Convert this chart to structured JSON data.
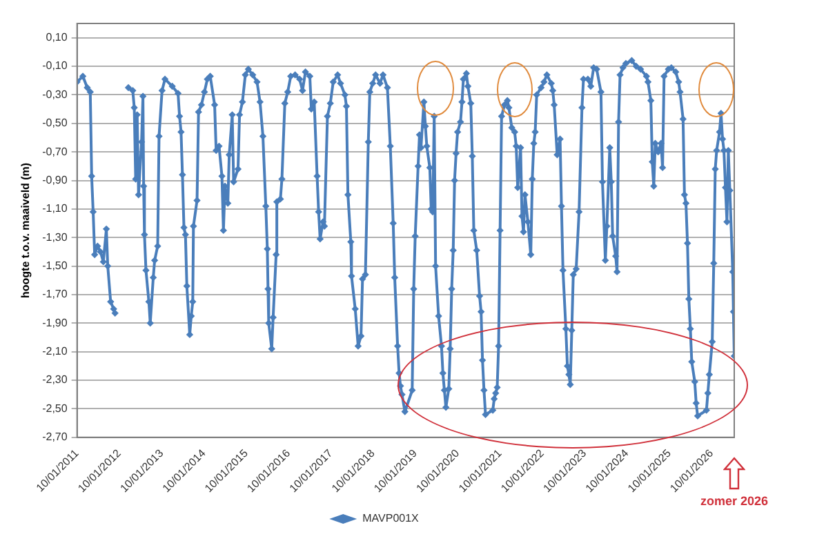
{
  "chart_data": {
    "type": "line",
    "ylabel": "hoogte t.o.v. maaiveld (m)",
    "annotations": [
      "zomer 2026"
    ],
    "xlim": [
      "2011-01-10",
      "2026-07-25"
    ],
    "xticks": [
      {
        "value": "2011-01-10",
        "label": "10/01/2011"
      },
      {
        "value": "2012-01-10",
        "label": "10/01/2012"
      },
      {
        "value": "2013-01-10",
        "label": "10/01/2013"
      },
      {
        "value": "2014-01-10",
        "label": "10/01/2014"
      },
      {
        "value": "2015-01-10",
        "label": "10/01/2015"
      },
      {
        "value": "2016-01-10",
        "label": "10/01/2016"
      },
      {
        "value": "2017-01-10",
        "label": "10/01/2017"
      },
      {
        "value": "2018-01-10",
        "label": "10/01/2018"
      },
      {
        "value": "2019-01-10",
        "label": "10/01/2019"
      },
      {
        "value": "2020-01-10",
        "label": "10/01/2020"
      },
      {
        "value": "2021-01-10",
        "label": "10/01/2021"
      },
      {
        "value": "2022-01-10",
        "label": "10/01/2022"
      },
      {
        "value": "2023-01-10",
        "label": "10/01/2023"
      },
      {
        "value": "2024-01-10",
        "label": "10/01/2024"
      },
      {
        "value": "2025-01-10",
        "label": "10/01/2025"
      },
      {
        "value": "2026-01-10",
        "label": "10/01/2026"
      }
    ],
    "ylim": [
      -2.7,
      0.2
    ],
    "yticks": [
      {
        "value": 0.1,
        "label": "0,10"
      },
      {
        "value": -0.1,
        "label": "-0,10"
      },
      {
        "value": -0.3,
        "label": "-0,30"
      },
      {
        "value": -0.5,
        "label": "-0,50"
      },
      {
        "value": -0.7,
        "label": "-0,70"
      },
      {
        "value": -0.9,
        "label": "-0,90"
      },
      {
        "value": -1.1,
        "label": "-1,10"
      },
      {
        "value": -1.3,
        "label": "-1,30"
      },
      {
        "value": -1.5,
        "label": "-1,50"
      },
      {
        "value": -1.7,
        "label": "-1,70"
      },
      {
        "value": -1.9,
        "label": "-1,90"
      },
      {
        "value": -2.1,
        "label": "-2,10"
      },
      {
        "value": -2.3,
        "label": "-2,30"
      },
      {
        "value": -2.5,
        "label": "-2,50"
      },
      {
        "value": -2.7,
        "label": "-2,70"
      }
    ],
    "grid": "y",
    "legend": "bottom",
    "marker": "diamond",
    "line_style": "solid",
    "series": [
      {
        "name": "MAVP001X",
        "color": "#4a7ebb",
        "x": [
          "2011-01-10",
          "2011-03-01",
          "2011-04-08",
          "2011-05-04",
          "2011-05-16",
          "2011-05-29",
          "2011-06-11",
          "2011-07-06",
          "2011-07-31",
          "2011-08-25",
          "2011-09-20",
          "2011-10-02",
          "2011-10-27",
          "2011-11-22",
          "2011-12-04",
          "2012-01-15",
          "2012-03-28",
          "2012-05-05",
          "2012-05-18",
          "2012-05-30",
          "2012-06-12",
          "2012-06-24",
          "2012-07-20",
          "2012-08-01",
          "2012-08-07",
          "2012-08-14",
          "2012-08-27",
          "2012-09-21",
          "2012-10-03",
          "2012-10-29",
          "2012-11-10",
          "2012-12-06",
          "2012-12-18",
          "2013-01-13",
          "2013-02-07",
          "2013-04-11",
          "2013-05-31",
          "2013-06-13",
          "2013-06-26",
          "2013-07-08",
          "2013-07-21",
          "2013-08-03",
          "2013-08-15",
          "2013-09-09",
          "2013-09-22",
          "2013-10-05",
          "2013-10-11",
          "2013-11-11",
          "2013-11-24",
          "2013-12-19",
          "2014-01-14",
          "2014-02-08",
          "2014-03-05",
          "2014-04-12",
          "2014-04-25",
          "2014-05-20",
          "2014-06-14",
          "2014-06-27",
          "2014-07-10",
          "2014-08-04",
          "2014-08-16",
          "2014-09-11",
          "2014-09-23",
          "2014-10-31",
          "2014-11-13",
          "2014-12-08",
          "2015-01-02",
          "2015-01-28",
          "2015-03-07",
          "2015-04-13",
          "2015-05-09",
          "2015-06-03",
          "2015-06-28",
          "2015-07-11",
          "2015-07-17",
          "2015-07-23",
          "2015-08-18",
          "2015-08-30",
          "2015-09-25",
          "2015-10-01",
          "2015-11-01",
          "2015-11-14",
          "2015-12-09",
          "2016-01-03",
          "2016-01-29",
          "2016-03-07",
          "2016-04-15",
          "2016-05-10",
          "2016-06-04",
          "2016-07-12",
          "2016-07-25",
          "2016-08-19",
          "2016-09-13",
          "2016-09-26",
          "2016-10-09",
          "2016-11-03",
          "2016-11-15",
          "2016-12-11",
          "2017-01-05",
          "2017-01-30",
          "2017-03-09",
          "2017-04-03",
          "2017-05-11",
          "2017-05-24",
          "2017-06-06",
          "2017-07-01",
          "2017-07-07",
          "2017-08-08",
          "2017-09-02",
          "2017-09-27",
          "2017-10-10",
          "2017-11-04",
          "2017-11-29",
          "2017-12-12",
          "2018-01-06",
          "2018-01-31",
          "2018-03-10",
          "2018-04-05",
          "2018-05-13",
          "2018-06-07",
          "2018-07-02",
          "2018-07-15",
          "2018-08-09",
          "2018-08-22",
          "2018-09-03",
          "2018-09-16",
          "2018-10-11",
          "2018-12-13",
          "2018-12-26",
          "2019-01-08",
          "2019-02-02",
          "2019-02-14",
          "2019-02-27",
          "2019-03-24",
          "2019-04-06",
          "2019-04-18",
          "2019-05-14",
          "2019-05-26",
          "2019-06-08",
          "2019-06-21",
          "2019-07-03",
          "2019-07-29",
          "2019-08-23",
          "2019-09-04",
          "2019-09-17",
          "2019-09-30",
          "2019-10-25",
          "2019-11-06",
          "2019-11-19",
          "2019-12-02",
          "2019-12-14",
          "2019-12-27",
          "2020-01-09",
          "2020-02-03",
          "2020-02-16",
          "2020-02-28",
          "2020-03-25",
          "2020-04-07",
          "2020-05-02",
          "2020-05-15",
          "2020-05-28",
          "2020-06-22",
          "2020-07-17",
          "2020-07-30",
          "2020-08-11",
          "2020-08-24",
          "2020-09-06",
          "2020-11-08",
          "2020-11-20",
          "2020-12-03",
          "2020-12-16",
          "2020-12-28",
          "2021-01-10",
          "2021-01-23",
          "2021-02-17",
          "2021-03-14",
          "2021-03-27",
          "2021-04-21",
          "2021-05-16",
          "2021-05-29",
          "2021-06-11",
          "2021-07-06",
          "2021-07-18",
          "2021-07-31",
          "2021-08-13",
          "2021-09-07",
          "2021-10-02",
          "2021-10-15",
          "2021-10-28",
          "2021-11-09",
          "2021-11-22",
          "2021-12-30",
          "2022-01-24",
          "2022-02-18",
          "2022-03-28",
          "2022-04-10",
          "2022-04-22",
          "2022-05-18",
          "2022-06-12",
          "2022-06-24",
          "2022-07-07",
          "2022-08-01",
          "2022-08-14",
          "2022-08-27",
          "2022-09-08",
          "2022-09-21",
          "2022-10-04",
          "2022-10-29",
          "2022-11-23",
          "2022-12-18",
          "2022-12-31",
          "2023-02-07",
          "2023-03-04",
          "2023-03-29",
          "2023-04-24",
          "2023-05-31",
          "2023-06-13",
          "2023-07-08",
          "2023-07-21",
          "2023-08-15",
          "2023-08-28",
          "2023-09-09",
          "2023-10-05",
          "2023-10-17",
          "2023-10-30",
          "2023-11-12",
          "2023-12-07",
          "2024-01-01",
          "2024-02-21",
          "2024-03-30",
          "2024-05-07",
          "2024-06-27",
          "2024-07-10",
          "2024-08-04",
          "2024-08-16",
          "2024-08-29",
          "2024-09-11",
          "2024-10-06",
          "2024-10-31",
          "2024-11-13",
          "2024-11-26",
          "2025-01-02",
          "2025-01-28",
          "2025-03-07",
          "2025-04-01",
          "2025-04-13",
          "2025-05-09",
          "2025-05-21",
          "2025-06-03",
          "2025-06-16",
          "2025-06-28",
          "2025-07-11",
          "2025-07-23",
          "2025-08-18",
          "2025-08-30",
          "2025-09-12",
          "2025-11-27",
          "2025-12-09",
          "2025-12-22",
          "2026-01-16",
          "2026-01-29",
          "2026-02-11",
          "2026-02-23",
          "2026-03-20",
          "2026-04-02",
          "2026-04-15",
          "2026-04-27",
          "2026-05-10",
          "2026-05-23",
          "2026-06-04",
          "2026-06-17",
          "2026-07-12",
          "2026-07-18",
          "2026-07-25"
        ],
        "values": [
          -0.21,
          -0.17,
          -0.25,
          -0.28,
          -0.87,
          -1.12,
          -1.42,
          -1.36,
          -1.4,
          -1.47,
          -1.24,
          -1.5,
          -1.75,
          -1.8,
          -1.83,
          null,
          -0.25,
          -0.27,
          -0.39,
          -0.89,
          -0.44,
          -1.0,
          -0.63,
          -0.31,
          -0.94,
          -1.28,
          -1.53,
          -1.75,
          -1.9,
          -1.58,
          -1.46,
          -1.36,
          -0.59,
          -0.27,
          -0.19,
          -0.24,
          -0.29,
          -0.45,
          -0.56,
          -0.86,
          -1.23,
          -1.28,
          -1.64,
          -1.98,
          -1.85,
          -1.75,
          -1.22,
          -1.04,
          -0.42,
          -0.37,
          -0.28,
          -0.19,
          -0.17,
          -0.37,
          -0.69,
          -0.66,
          -0.87,
          -1.25,
          -0.94,
          -1.06,
          -0.72,
          -0.44,
          -0.91,
          -0.82,
          -0.44,
          -0.35,
          -0.16,
          -0.12,
          -0.16,
          -0.21,
          -0.35,
          -0.59,
          -1.08,
          -1.38,
          -1.66,
          -1.9,
          -2.08,
          -1.86,
          -1.42,
          -1.05,
          -1.03,
          -0.89,
          -0.36,
          -0.28,
          -0.17,
          -0.16,
          -0.19,
          -0.27,
          -0.14,
          -0.17,
          -0.4,
          -0.35,
          -0.87,
          -1.12,
          -1.31,
          -1.19,
          -1.22,
          -0.45,
          -0.36,
          -0.21,
          -0.16,
          -0.22,
          -0.3,
          -0.38,
          -1.0,
          -1.33,
          -1.57,
          -1.8,
          -2.06,
          -1.99,
          -1.59,
          -1.56,
          -0.63,
          -0.28,
          -0.22,
          -0.16,
          -0.22,
          -0.16,
          -0.25,
          -0.66,
          -1.2,
          -1.58,
          -2.06,
          -2.25,
          -2.34,
          -2.4,
          -2.52,
          -2.37,
          -1.66,
          -1.29,
          -0.8,
          -0.58,
          -0.67,
          -0.35,
          -0.52,
          -0.66,
          -0.81,
          -1.1,
          -1.12,
          -0.45,
          -1.5,
          -1.85,
          -2.06,
          -2.25,
          -2.37,
          -2.49,
          -2.36,
          -2.08,
          -1.66,
          -1.39,
          -0.9,
          -0.71,
          -0.56,
          -0.49,
          -0.35,
          -0.19,
          -0.15,
          -0.24,
          -0.36,
          -0.73,
          -1.25,
          -1.39,
          -1.71,
          -1.82,
          -2.16,
          -2.37,
          -2.54,
          -2.51,
          -2.43,
          -2.39,
          -2.35,
          -2.06,
          -1.25,
          -0.45,
          -0.37,
          -0.34,
          -0.39,
          -0.53,
          -0.56,
          -0.66,
          -0.95,
          -0.67,
          -1.15,
          -1.26,
          -1.0,
          -1.19,
          -1.42,
          -0.89,
          -0.64,
          -0.56,
          -0.3,
          -0.25,
          -0.21,
          -0.16,
          -0.22,
          -0.27,
          -0.37,
          -0.72,
          -0.61,
          -1.08,
          -1.53,
          -1.94,
          -2.2,
          -2.26,
          -2.33,
          -1.95,
          -1.56,
          -1.52,
          -1.12,
          -0.39,
          -0.19,
          -0.19,
          -0.24,
          -0.11,
          -0.12,
          -0.28,
          -0.91,
          -1.46,
          -1.22,
          -0.67,
          -0.91,
          -1.29,
          -1.43,
          -1.54,
          -0.49,
          -0.16,
          -0.11,
          -0.08,
          -0.06,
          -0.1,
          -0.12,
          -0.17,
          -0.21,
          -0.34,
          -0.77,
          -0.94,
          -0.64,
          -0.7,
          -0.64,
          -0.81,
          -0.17,
          -0.12,
          -0.11,
          -0.14,
          -0.21,
          -0.28,
          -0.47,
          -1.0,
          -1.06,
          -1.34,
          -1.73,
          -1.94,
          -2.17,
          -2.31,
          -2.46,
          -2.55,
          -2.51,
          -2.39,
          -2.26,
          -2.03,
          -1.48,
          -0.82,
          -0.69,
          -0.56,
          -0.43,
          -0.61,
          -0.69,
          -0.95,
          -1.19,
          -0.69,
          -0.97,
          -1.54,
          -1.82,
          -2.13
        ]
      }
    ]
  }
}
